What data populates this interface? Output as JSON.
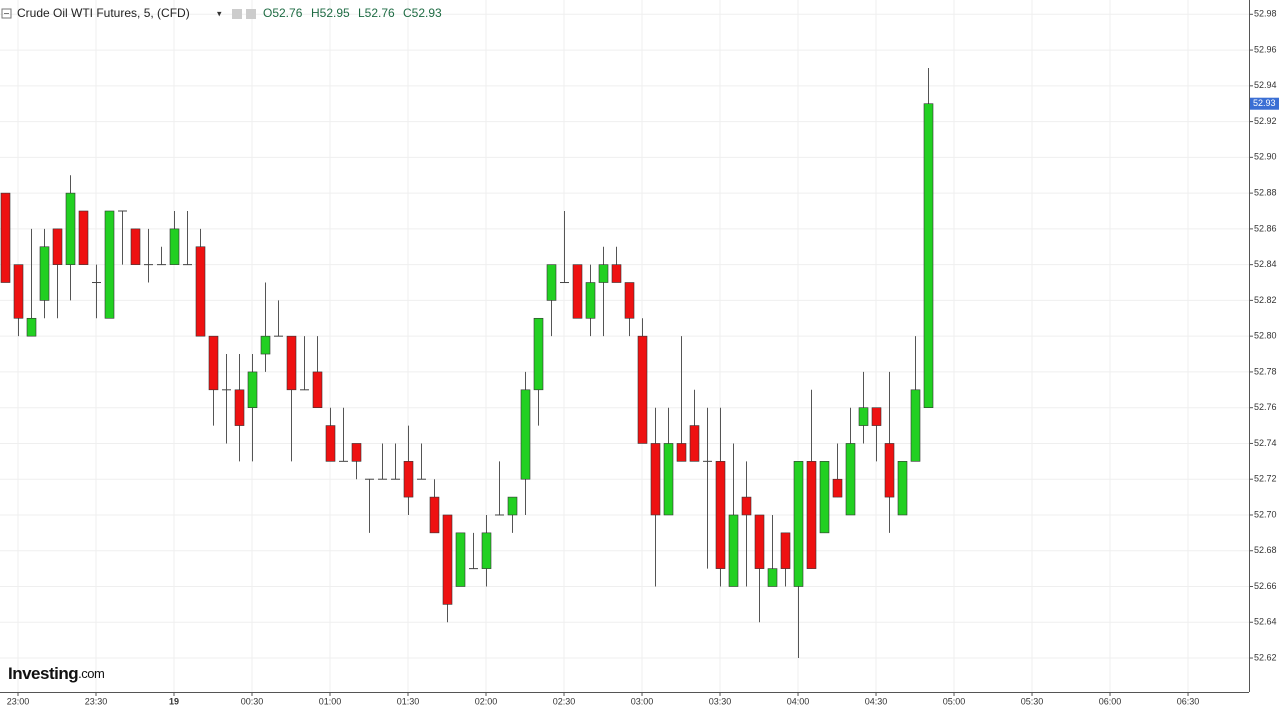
{
  "chart_data": {
    "type": "candlestick",
    "title": "Crude Oil WTI Futures, 5, (CFD)",
    "ohlc_legend": [
      "O52.76",
      "H52.95",
      "L52.76",
      "C52.93"
    ],
    "logo": [
      "Investing",
      ".com"
    ],
    "up_color": "#22d022",
    "down_color": "#ee1111",
    "open": [
      52.88,
      52.84,
      52.8,
      52.82,
      52.86,
      52.84,
      52.87,
      52.83,
      52.81,
      52.87,
      52.86,
      52.84,
      52.84,
      52.84,
      52.84,
      52.85,
      52.8,
      52.77,
      52.77,
      52.76,
      52.79,
      52.8,
      52.8,
      52.77,
      52.78,
      52.75,
      52.73,
      52.74,
      52.72,
      52.72,
      52.72,
      52.73,
      52.72,
      52.71,
      52.7,
      52.66,
      52.67,
      52.67,
      52.7,
      52.7,
      52.72,
      52.77,
      52.82,
      52.83,
      52.84,
      52.81,
      52.83,
      52.84,
      52.83,
      52.8,
      52.74,
      52.7,
      52.74,
      52.75,
      52.73,
      52.73,
      52.66,
      52.71,
      52.7,
      52.66,
      52.69,
      52.66,
      52.73,
      52.69,
      52.72,
      52.7,
      52.75,
      52.76,
      52.74,
      52.7,
      52.73,
      52.76
    ],
    "high": [
      52.88,
      52.84,
      52.86,
      52.86,
      52.86,
      52.89,
      52.87,
      52.84,
      52.87,
      52.87,
      52.86,
      52.86,
      52.85,
      52.87,
      52.87,
      52.86,
      52.8,
      52.79,
      52.79,
      52.79,
      52.83,
      52.82,
      52.8,
      52.8,
      52.8,
      52.76,
      52.76,
      52.74,
      52.72,
      52.74,
      52.74,
      52.75,
      52.74,
      52.72,
      52.7,
      52.69,
      52.69,
      52.7,
      52.73,
      52.71,
      52.78,
      52.81,
      52.84,
      52.87,
      52.84,
      52.84,
      52.85,
      52.85,
      52.83,
      52.81,
      52.76,
      52.76,
      52.8,
      52.77,
      52.76,
      52.76,
      52.74,
      52.73,
      52.7,
      52.7,
      52.69,
      52.73,
      52.77,
      52.73,
      52.74,
      52.76,
      52.78,
      52.76,
      52.78,
      52.73,
      52.8,
      52.95
    ],
    "low": [
      52.83,
      52.8,
      52.8,
      52.81,
      52.81,
      52.82,
      52.84,
      52.81,
      52.81,
      52.84,
      52.84,
      52.83,
      52.84,
      52.84,
      52.84,
      52.8,
      52.75,
      52.74,
      52.73,
      52.73,
      52.78,
      52.8,
      52.73,
      52.77,
      52.76,
      52.73,
      52.73,
      52.72,
      52.69,
      52.72,
      52.72,
      52.7,
      52.72,
      52.69,
      52.64,
      52.66,
      52.67,
      52.66,
      52.7,
      52.69,
      52.7,
      52.75,
      52.8,
      52.83,
      52.81,
      52.8,
      52.8,
      52.83,
      52.8,
      52.74,
      52.66,
      52.7,
      52.73,
      52.73,
      52.67,
      52.66,
      52.66,
      52.66,
      52.64,
      52.66,
      52.66,
      52.62,
      52.67,
      52.69,
      52.71,
      52.7,
      52.74,
      52.73,
      52.69,
      52.7,
      52.73,
      52.76
    ],
    "close": [
      52.83,
      52.81,
      52.81,
      52.85,
      52.84,
      52.88,
      52.84,
      52.83,
      52.87,
      52.87,
      52.84,
      52.84,
      52.84,
      52.86,
      52.84,
      52.8,
      52.77,
      52.77,
      52.75,
      52.78,
      52.8,
      52.8,
      52.77,
      52.77,
      52.76,
      52.73,
      52.73,
      52.73,
      52.72,
      52.72,
      52.72,
      52.71,
      52.72,
      52.69,
      52.65,
      52.69,
      52.67,
      52.69,
      52.7,
      52.71,
      52.77,
      52.81,
      52.84,
      52.83,
      52.81,
      52.83,
      52.84,
      52.83,
      52.81,
      52.74,
      52.7,
      52.74,
      52.73,
      52.73,
      52.73,
      52.67,
      52.7,
      52.7,
      52.67,
      52.67,
      52.67,
      52.73,
      52.67,
      52.73,
      52.71,
      52.74,
      52.76,
      52.75,
      52.71,
      52.73,
      52.77,
      52.93
    ],
    "last_price": 52.93,
    "xlim": [
      -0.385,
      95.69
    ],
    "xticks": [
      {
        "value": 1,
        "label": "23:00"
      },
      {
        "value": 7,
        "label": "23:30"
      },
      {
        "value": 13,
        "label": "19"
      },
      {
        "value": 19,
        "label": "00:30"
      },
      {
        "value": 25,
        "label": "01:00"
      },
      {
        "value": 31,
        "label": "01:30"
      },
      {
        "value": 37,
        "label": "02:00"
      },
      {
        "value": 43,
        "label": "02:30"
      },
      {
        "value": 49,
        "label": "03:00"
      },
      {
        "value": 55,
        "label": "03:30"
      },
      {
        "value": 61,
        "label": "04:00"
      },
      {
        "value": 67,
        "label": "04:30"
      },
      {
        "value": 73,
        "label": "05:00"
      },
      {
        "value": 79,
        "label": "05:30"
      },
      {
        "value": 85,
        "label": "06:00"
      },
      {
        "value": 91,
        "label": "06:30"
      }
    ],
    "ylim": [
      52.601,
      52.988
    ],
    "yticks": [
      52.62,
      52.64,
      52.66,
      52.68,
      {
        "value": 52.7,
        "label": "52.70"
      },
      52.72,
      52.74,
      52.76,
      52.78,
      {
        "value": 52.8,
        "label": "52.80"
      },
      52.82,
      52.84,
      52.86,
      52.88,
      {
        "value": 52.9,
        "label": "52.90"
      },
      52.92,
      52.94,
      52.96,
      52.98
    ],
    "grid": true
  }
}
